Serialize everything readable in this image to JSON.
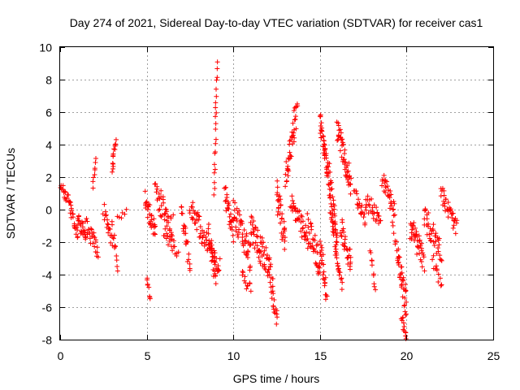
{
  "chart_data": {
    "type": "scatter",
    "title": "Day 274 of 2021, Sidereal Day-to-day VTEC variation (SDTVAR) for receiver cas1",
    "xlabel": "GPS time / hours",
    "ylabel": "SDTVAR / TECUs",
    "xlim": [
      0,
      25
    ],
    "ylim": [
      -8,
      10
    ],
    "xticks": [
      "0",
      "5",
      "10",
      "15",
      "20",
      "25"
    ],
    "yticks": [
      "-8",
      "-6",
      "-4",
      "-2",
      "0",
      "2",
      "4",
      "6",
      "8",
      "10"
    ],
    "grid": true,
    "marker": "+",
    "series_color": "#ff0000",
    "series": [
      {
        "name": "cas1",
        "segments": [
          {
            "x": [
              0.0,
              0.6
            ],
            "y": [
              1.5,
              0.3
            ],
            "spread": 0.6,
            "n": 20
          },
          {
            "x": [
              0.6,
              1.0
            ],
            "y": [
              0.0,
              -1.5
            ],
            "spread": 0.7,
            "n": 18
          },
          {
            "x": [
              1.0,
              1.5
            ],
            "y": [
              -0.5,
              -2.0
            ],
            "spread": 0.9,
            "n": 22
          },
          {
            "x": [
              1.5,
              2.2
            ],
            "y": [
              -1.0,
              -2.5
            ],
            "spread": 0.9,
            "n": 26
          },
          {
            "x": [
              1.9,
              2.1
            ],
            "y": [
              1.5,
              3.0
            ],
            "spread": 0.4,
            "n": 8
          },
          {
            "x": [
              2.5,
              3.0
            ],
            "y": [
              0.0,
              -2.0
            ],
            "spread": 0.8,
            "n": 18
          },
          {
            "x": [
              3.0,
              3.2
            ],
            "y": [
              2.5,
              4.4
            ],
            "spread": 0.5,
            "n": 14
          },
          {
            "x": [
              3.0,
              3.3
            ],
            "y": [
              -1.0,
              -3.5
            ],
            "spread": 0.6,
            "n": 12
          },
          {
            "x": [
              3.3,
              3.8
            ],
            "y": [
              -0.5,
              -0.2
            ],
            "spread": 0.4,
            "n": 6
          },
          {
            "x": [
              4.9,
              5.5
            ],
            "y": [
              0.5,
              -1.5
            ],
            "spread": 1.2,
            "n": 30
          },
          {
            "x": [
              5.0,
              5.2
            ],
            "y": [
              -4.0,
              -5.6
            ],
            "spread": 0.4,
            "n": 8
          },
          {
            "x": [
              5.5,
              6.5
            ],
            "y": [
              1.0,
              -1.0
            ],
            "spread": 1.3,
            "n": 40
          },
          {
            "x": [
              6.0,
              6.8
            ],
            "y": [
              -1.5,
              -2.5
            ],
            "spread": 0.7,
            "n": 20
          },
          {
            "x": [
              7.0,
              7.5
            ],
            "y": [
              0.0,
              -3.5
            ],
            "spread": 1.0,
            "n": 22
          },
          {
            "x": [
              7.5,
              8.5
            ],
            "y": [
              0.5,
              -2.5
            ],
            "spread": 1.2,
            "n": 40
          },
          {
            "x": [
              8.5,
              9.0
            ],
            "y": [
              -1.0,
              -4.5
            ],
            "spread": 1.0,
            "n": 26
          },
          {
            "x": [
              8.7,
              9.2
            ],
            "y": [
              -2.5,
              -3.5
            ],
            "spread": 0.8,
            "n": 20
          },
          {
            "x": [
              8.9,
              9.05
            ],
            "y": [
              1.0,
              9.0
            ],
            "spread": 0.3,
            "n": 22
          },
          {
            "x": [
              9.5,
              10.0
            ],
            "y": [
              1.0,
              -1.5
            ],
            "spread": 1.2,
            "n": 26
          },
          {
            "x": [
              10.0,
              11.0
            ],
            "y": [
              0.0,
              -3.0
            ],
            "spread": 1.5,
            "n": 50
          },
          {
            "x": [
              10.5,
              11.0
            ],
            "y": [
              -4.0,
              -5.0
            ],
            "spread": 0.6,
            "n": 12
          },
          {
            "x": [
              11.0,
              12.0
            ],
            "y": [
              -1.0,
              -3.5
            ],
            "spread": 1.5,
            "n": 50
          },
          {
            "x": [
              12.0,
              12.5
            ],
            "y": [
              -3.0,
              -6.8
            ],
            "spread": 1.2,
            "n": 30
          },
          {
            "x": [
              12.5,
              13.0
            ],
            "y": [
              1.0,
              -2.0
            ],
            "spread": 1.5,
            "n": 35
          },
          {
            "x": [
              13.0,
              13.6
            ],
            "y": [
              2.0,
              5.5
            ],
            "spread": 1.2,
            "n": 35
          },
          {
            "x": [
              13.5,
              13.7
            ],
            "y": [
              6.2,
              6.5
            ],
            "spread": 0.2,
            "n": 6
          },
          {
            "x": [
              13.3,
              14.3
            ],
            "y": [
              0.5,
              -2.0
            ],
            "spread": 1.2,
            "n": 40
          },
          {
            "x": [
              14.3,
              15.0
            ],
            "y": [
              -1.0,
              -3.5
            ],
            "spread": 1.5,
            "n": 35
          },
          {
            "x": [
              15.0,
              15.5
            ],
            "y": [
              5.5,
              2.0
            ],
            "spread": 1.2,
            "n": 40
          },
          {
            "x": [
              15.0,
              15.4
            ],
            "y": [
              -2.0,
              -5.2
            ],
            "spread": 1.0,
            "n": 24
          },
          {
            "x": [
              15.5,
              16.0
            ],
            "y": [
              2.0,
              -2.5
            ],
            "spread": 2.0,
            "n": 55
          },
          {
            "x": [
              15.9,
              16.3
            ],
            "y": [
              -3.0,
              -4.5
            ],
            "spread": 0.8,
            "n": 16
          },
          {
            "x": [
              16.0,
              16.8
            ],
            "y": [
              5.0,
              1.5
            ],
            "spread": 1.2,
            "n": 50
          },
          {
            "x": [
              16.2,
              16.8
            ],
            "y": [
              -1.0,
              -3.5
            ],
            "spread": 1.2,
            "n": 30
          },
          {
            "x": [
              17.0,
              17.6
            ],
            "y": [
              1.0,
              -0.5
            ],
            "spread": 0.8,
            "n": 20
          },
          {
            "x": [
              17.6,
              18.5
            ],
            "y": [
              0.5,
              -0.5
            ],
            "spread": 0.9,
            "n": 28
          },
          {
            "x": [
              17.9,
              18.2
            ],
            "y": [
              -2.5,
              -4.8
            ],
            "spread": 0.6,
            "n": 10
          },
          {
            "x": [
              18.6,
              19.3
            ],
            "y": [
              2.0,
              0.0
            ],
            "spread": 0.9,
            "n": 30
          },
          {
            "x": [
              19.2,
              19.5
            ],
            "y": [
              -1.0,
              -2.5
            ],
            "spread": 0.5,
            "n": 8
          },
          {
            "x": [
              19.5,
              20.0
            ],
            "y": [
              -3.0,
              -6.0
            ],
            "spread": 1.5,
            "n": 36
          },
          {
            "x": [
              19.7,
              20.0
            ],
            "y": [
              -6.5,
              -7.9
            ],
            "spread": 0.5,
            "n": 12
          },
          {
            "x": [
              20.2,
              21.0
            ],
            "y": [
              -1.0,
              -3.0
            ],
            "spread": 1.3,
            "n": 40
          },
          {
            "x": [
              21.0,
              22.0
            ],
            "y": [
              -0.5,
              -2.5
            ],
            "spread": 1.3,
            "n": 40
          },
          {
            "x": [
              21.5,
              22.0
            ],
            "y": [
              -3.0,
              -4.5
            ],
            "spread": 0.6,
            "n": 12
          },
          {
            "x": [
              22.0,
              22.9
            ],
            "y": [
              1.0,
              -1.2
            ],
            "spread": 0.9,
            "n": 36
          }
        ]
      }
    ]
  }
}
